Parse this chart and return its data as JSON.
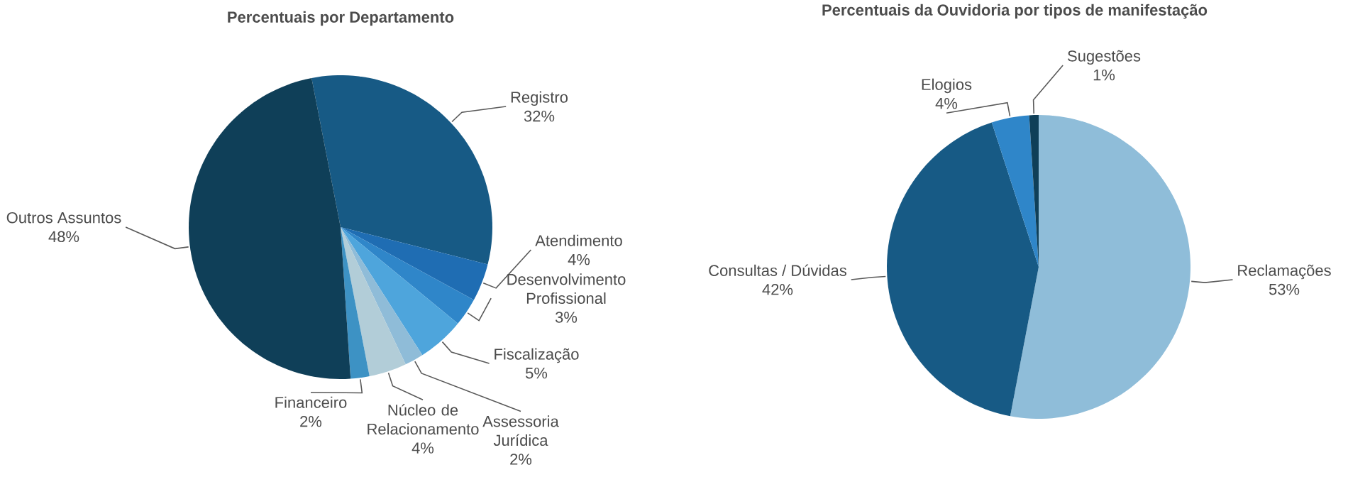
{
  "chart_data": [
    {
      "type": "pie",
      "title": "Percentuais por Departamento",
      "categories": [
        "Registro",
        "Atendimento",
        "Desenvolvimento Profissional",
        "Fiscalização",
        "Assessoria Jurídica",
        "Núcleo de Relacionamento",
        "Financeiro",
        "Outros Assuntos"
      ],
      "values": [
        32,
        4,
        3,
        5,
        2,
        4,
        2,
        48
      ],
      "value_labels": [
        "32%",
        "4%",
        "3%",
        "5%",
        "2%",
        "4%",
        "2%",
        "48%"
      ],
      "colors": [
        "#175a85",
        "#1f6db3",
        "#2f86c9",
        "#4ea5dc",
        "#8fbcd8",
        "#b2cdd8",
        "#3d92c4",
        "#0f3f58"
      ]
    },
    {
      "type": "pie",
      "title": "Percentuais da Ouvidoria por tipos de manifestação",
      "categories": [
        "Reclamações",
        "Consultas / Dúvidas",
        "Elogios",
        "Sugestões"
      ],
      "values": [
        53,
        42,
        4,
        1
      ],
      "value_labels": [
        "53%",
        "42%",
        "4%",
        "1%"
      ],
      "colors": [
        "#8fbdd9",
        "#175a85",
        "#2f86c9",
        "#0f3f58"
      ]
    }
  ]
}
